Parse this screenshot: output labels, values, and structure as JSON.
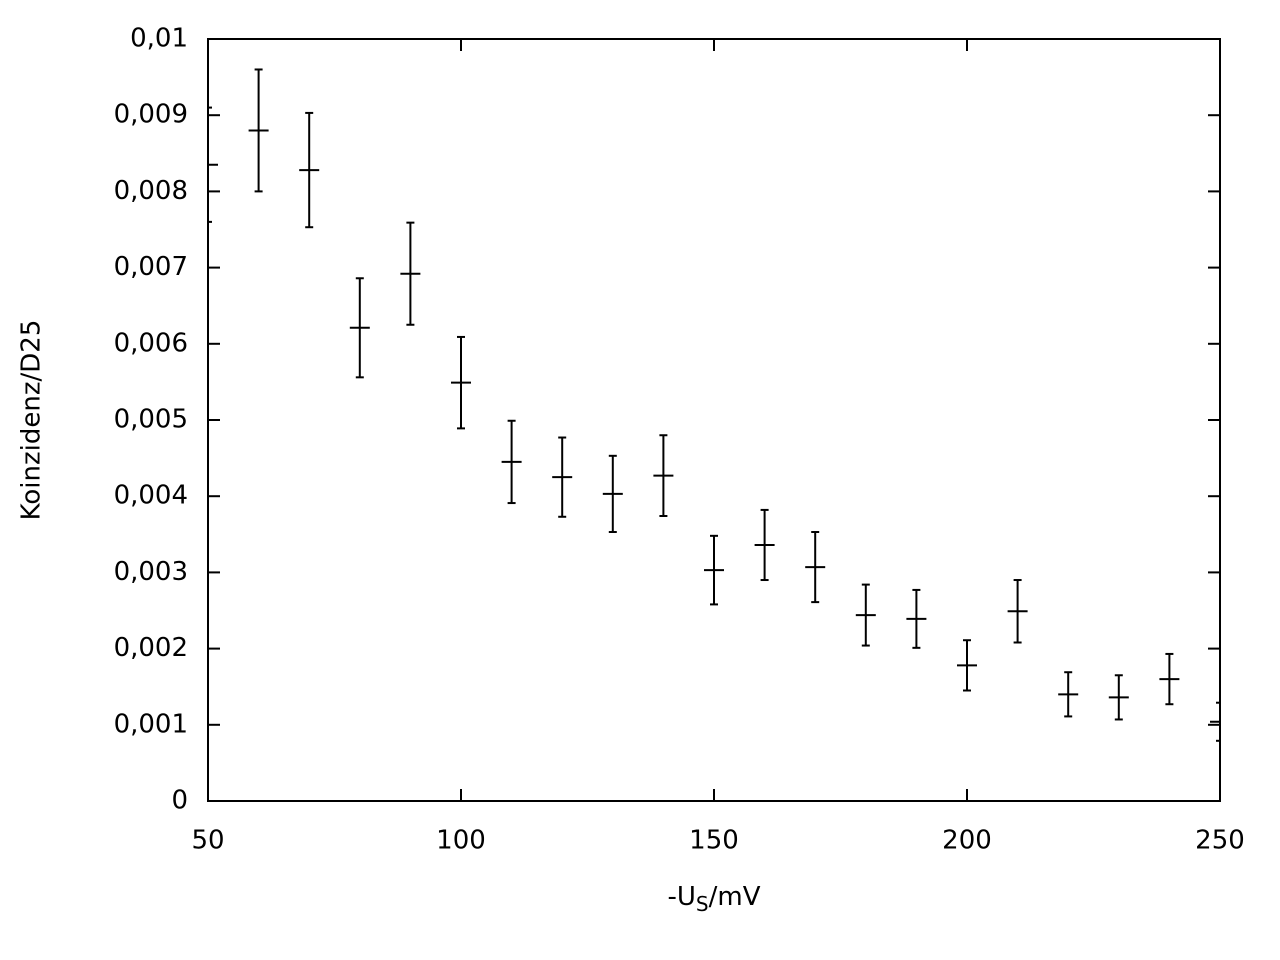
{
  "chart_data": {
    "type": "errorbar",
    "y_label": "Koinzidenz/D25",
    "x_label_parts": [
      "-U",
      "S",
      "/mV"
    ],
    "x": [
      50,
      60,
      70,
      80,
      90,
      100,
      110,
      120,
      130,
      140,
      150,
      160,
      170,
      180,
      190,
      200,
      210,
      220,
      230,
      240,
      250
    ],
    "values": [
      0.00835,
      0.0088,
      0.00828,
      0.00621,
      0.00692,
      0.00549,
      0.00445,
      0.00425,
      0.00403,
      0.00427,
      0.00303,
      0.00336,
      0.00307,
      0.00244,
      0.00239,
      0.00178,
      0.00249,
      0.0014,
      0.00136,
      0.0016,
      0.00104
    ],
    "errors": [
      0.00075,
      0.0008,
      0.00075,
      0.00065,
      0.00067,
      0.0006,
      0.00054,
      0.00052,
      0.0005,
      0.00053,
      0.00045,
      0.00046,
      0.00046,
      0.0004,
      0.00038,
      0.00033,
      0.00041,
      0.00029,
      0.00029,
      0.00033,
      0.00025
    ],
    "color": "#000000",
    "xlim": [
      50,
      250
    ],
    "xticks": [
      50,
      100,
      150,
      200,
      250
    ],
    "ylim": [
      0,
      0.01
    ],
    "yticks": [
      0,
      {
        "value": 0.001,
        "label": "0,001"
      },
      {
        "value": 0.002,
        "label": "0,002"
      },
      {
        "value": 0.003,
        "label": "0,003"
      },
      {
        "value": 0.004,
        "label": "0,004"
      },
      {
        "value": 0.005,
        "label": "0,005"
      },
      {
        "value": 0.006,
        "label": "0,006"
      },
      {
        "value": 0.007,
        "label": "0,007"
      },
      {
        "value": 0.008,
        "label": "0,008"
      },
      {
        "value": 0.009,
        "label": "0,009"
      },
      {
        "value": 0.01,
        "label": "0,01"
      }
    ]
  }
}
